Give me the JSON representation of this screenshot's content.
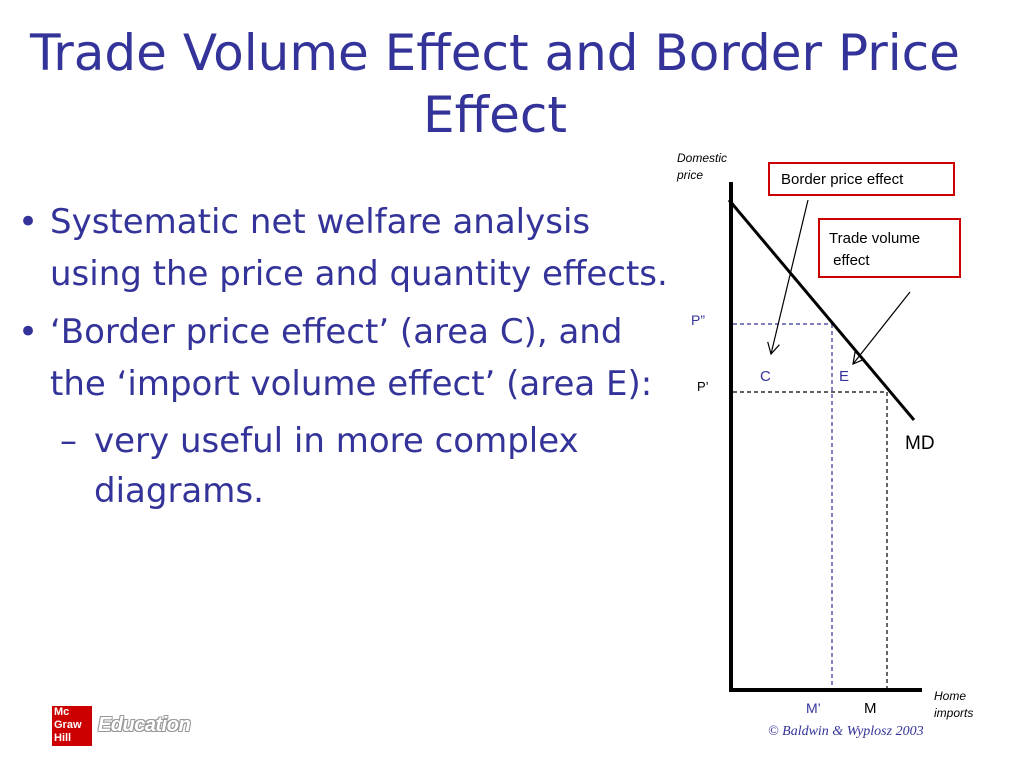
{
  "slide": {
    "title": "Trade Volume Effect and Border Price Effect",
    "bullets": [
      "Systematic net welfare analysis using the price and quantity effects.",
      "‘Border price effect’ (area C), and the ‘import volume effect’ (area E):"
    ],
    "sub_bullets": [
      "very useful in more complex diagrams."
    ],
    "bullet_symbol": "•",
    "sub_bullet_symbol": "–"
  },
  "diagram": {
    "y_axis_label_line1": "Domestic",
    "y_axis_label_line2": "price",
    "x_axis_label_line1": "Home",
    "x_axis_label_line2": "imports",
    "price_high": "P”",
    "price_low": "P’",
    "quantity_low": "M’",
    "quantity_high": "M",
    "area_c": "C",
    "area_e": "E",
    "curve_label": "MD",
    "callout_border": "Border price effect",
    "callout_volume_line1": "Trade volume",
    "callout_volume_line2": " effect",
    "callout_border_color": "#cc0000",
    "guide_blue": "#333399"
  },
  "footer": {
    "logo_line1": "Mc",
    "logo_line2": "Graw",
    "logo_line3": "Hill",
    "education": "Education",
    "copyright": "© Baldwin & Wyplosz 2003"
  }
}
